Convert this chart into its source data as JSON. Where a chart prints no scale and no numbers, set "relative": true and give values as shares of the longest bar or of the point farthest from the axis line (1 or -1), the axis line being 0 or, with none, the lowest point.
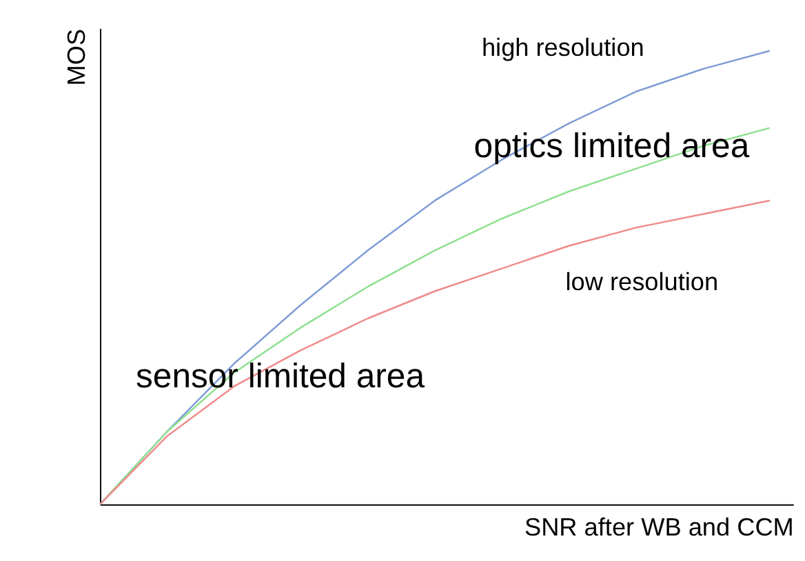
{
  "chart_data": {
    "type": "line",
    "relative": true,
    "xlabel": "SNR after WB and CCM",
    "ylabel": "MOS",
    "categories": [
      null,
      null,
      null,
      null,
      null,
      null,
      null,
      null,
      null,
      null,
      null
    ],
    "series": [
      {
        "name": "high resolution",
        "color": "#7f9cd6",
        "values": [
          0,
          0.16,
          0.31,
          0.44,
          0.56,
          0.67,
          0.76,
          0.84,
          0.91,
          0.96,
          1
        ]
      },
      {
        "color": "#8ee08e",
        "values": [
          0,
          0.16,
          0.29,
          0.39,
          0.48,
          0.56,
          0.63,
          0.69,
          0.74,
          0.79,
          0.83
        ]
      },
      {
        "name": "low resolution",
        "color": "#f08a8a",
        "values": [
          0,
          0.15,
          0.26,
          0.34,
          0.41,
          0.47,
          0.52,
          0.57,
          0.61,
          0.64,
          0.67
        ]
      }
    ],
    "annotations": [
      "optics limited area",
      "sensor limited area"
    ]
  }
}
